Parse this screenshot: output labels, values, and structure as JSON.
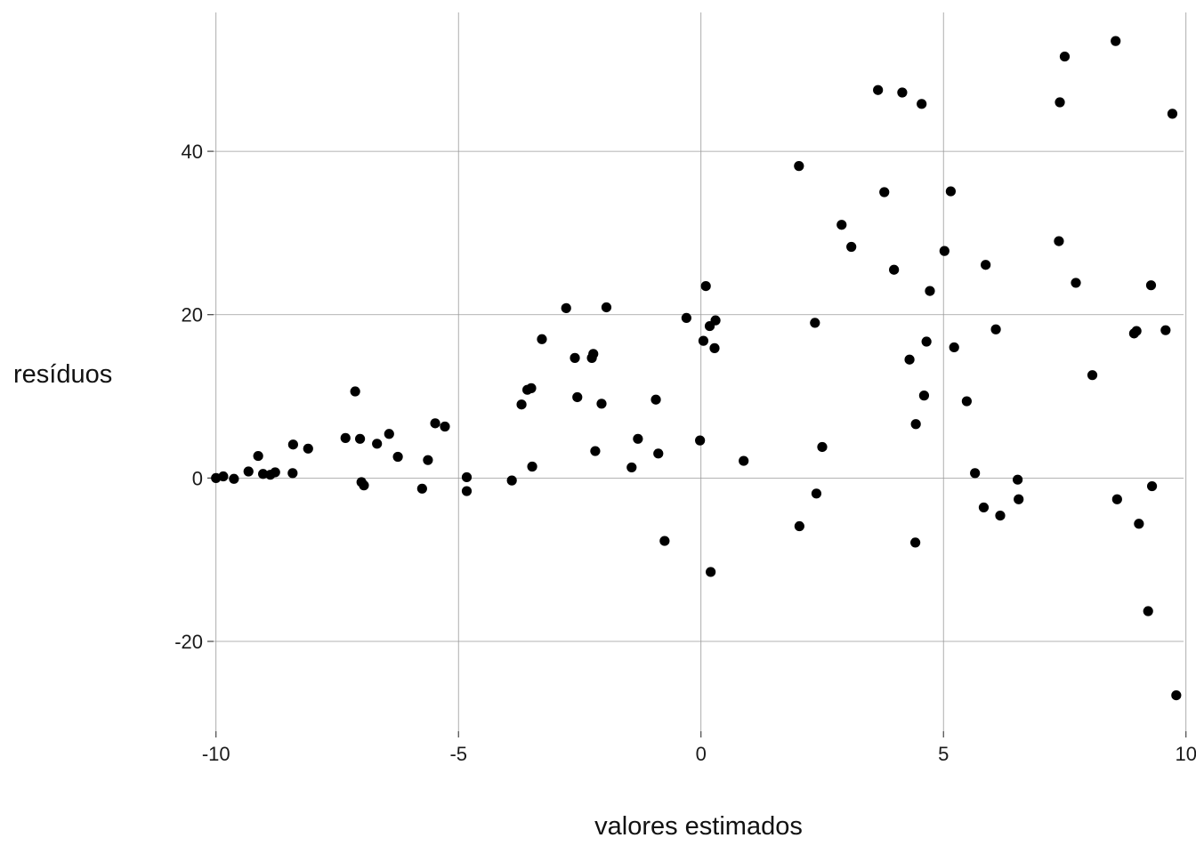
{
  "chart_data": {
    "type": "scatter",
    "title": "",
    "xlabel": "valores estimados",
    "ylabel": "resíduos",
    "xlim": [
      -10.05,
      9.95
    ],
    "ylim": [
      -31,
      57
    ],
    "x_ticks": [
      -10,
      -5,
      0,
      5,
      10
    ],
    "y_ticks": [
      -20,
      0,
      20,
      40
    ],
    "x_tick_labels": [
      "-10",
      "-5",
      "0",
      "5",
      "10"
    ],
    "y_tick_labels": [
      "-20",
      "0",
      "20",
      "40"
    ],
    "grid": true,
    "legend": "none",
    "point_color": "#000000",
    "series": [
      {
        "points": [
          {
            "x": -10.0,
            "y": 0.0
          },
          {
            "x": -9.85,
            "y": 0.2
          },
          {
            "x": -9.63,
            "y": -0.1
          },
          {
            "x": -9.33,
            "y": 0.8
          },
          {
            "x": -9.13,
            "y": 2.7
          },
          {
            "x": -9.03,
            "y": 0.5
          },
          {
            "x": -8.88,
            "y": 0.4
          },
          {
            "x": -8.78,
            "y": 0.7
          },
          {
            "x": -8.42,
            "y": 0.6
          },
          {
            "x": -8.41,
            "y": 4.1
          },
          {
            "x": -8.1,
            "y": 3.6
          },
          {
            "x": -7.33,
            "y": 4.9
          },
          {
            "x": -7.13,
            "y": 10.6
          },
          {
            "x": -7.03,
            "y": 4.8
          },
          {
            "x": -7.0,
            "y": -0.5
          },
          {
            "x": -6.95,
            "y": -0.9
          },
          {
            "x": -6.68,
            "y": 4.2
          },
          {
            "x": -6.43,
            "y": 5.4
          },
          {
            "x": -6.25,
            "y": 2.6
          },
          {
            "x": -5.75,
            "y": -1.3
          },
          {
            "x": -5.63,
            "y": 2.2
          },
          {
            "x": -5.48,
            "y": 6.7
          },
          {
            "x": -5.28,
            "y": 6.3
          },
          {
            "x": -4.83,
            "y": 0.1
          },
          {
            "x": -4.83,
            "y": -1.6
          },
          {
            "x": -3.9,
            "y": -0.3
          },
          {
            "x": -3.7,
            "y": 9.0
          },
          {
            "x": -3.58,
            "y": 10.8
          },
          {
            "x": -3.5,
            "y": 11.0
          },
          {
            "x": -3.48,
            "y": 1.4
          },
          {
            "x": -3.28,
            "y": 17.0
          },
          {
            "x": -2.78,
            "y": 20.8
          },
          {
            "x": -2.6,
            "y": 14.7
          },
          {
            "x": -2.55,
            "y": 9.9
          },
          {
            "x": -2.25,
            "y": 14.7
          },
          {
            "x": -2.22,
            "y": 15.2
          },
          {
            "x": -2.18,
            "y": 3.3
          },
          {
            "x": -2.05,
            "y": 9.1
          },
          {
            "x": -1.95,
            "y": 20.9
          },
          {
            "x": -1.43,
            "y": 1.3
          },
          {
            "x": -1.3,
            "y": 4.8
          },
          {
            "x": -0.93,
            "y": 9.6
          },
          {
            "x": -0.88,
            "y": 3.0
          },
          {
            "x": -0.75,
            "y": -7.7
          },
          {
            "x": -0.3,
            "y": 19.6
          },
          {
            "x": -0.02,
            "y": 4.6
          },
          {
            "x": 0.05,
            "y": 16.8
          },
          {
            "x": 0.1,
            "y": 23.5
          },
          {
            "x": 0.18,
            "y": 18.6
          },
          {
            "x": 0.2,
            "y": -11.5
          },
          {
            "x": 0.28,
            "y": 15.9
          },
          {
            "x": 0.3,
            "y": 19.3
          },
          {
            "x": 0.88,
            "y": 2.1
          },
          {
            "x": 2.02,
            "y": 38.2
          },
          {
            "x": 2.03,
            "y": -5.9
          },
          {
            "x": 2.35,
            "y": 19.0
          },
          {
            "x": 2.38,
            "y": -1.9
          },
          {
            "x": 2.5,
            "y": 3.8
          },
          {
            "x": 2.9,
            "y": 31.0
          },
          {
            "x": 3.1,
            "y": 28.3
          },
          {
            "x": 3.65,
            "y": 47.5
          },
          {
            "x": 3.78,
            "y": 35.0
          },
          {
            "x": 3.98,
            "y": 25.5
          },
          {
            "x": 4.15,
            "y": 47.2
          },
          {
            "x": 4.3,
            "y": 14.5
          },
          {
            "x": 4.42,
            "y": -7.9
          },
          {
            "x": 4.43,
            "y": 6.6
          },
          {
            "x": 4.55,
            "y": 45.8
          },
          {
            "x": 4.6,
            "y": 10.1
          },
          {
            "x": 4.65,
            "y": 16.7
          },
          {
            "x": 4.72,
            "y": 22.9
          },
          {
            "x": 5.02,
            "y": 27.8
          },
          {
            "x": 5.15,
            "y": 35.1
          },
          {
            "x": 5.22,
            "y": 16.0
          },
          {
            "x": 5.48,
            "y": 9.4
          },
          {
            "x": 5.65,
            "y": 0.6
          },
          {
            "x": 5.83,
            "y": -3.6
          },
          {
            "x": 5.87,
            "y": 26.1
          },
          {
            "x": 6.08,
            "y": 18.2
          },
          {
            "x": 6.17,
            "y": -4.6
          },
          {
            "x": 6.53,
            "y": -0.2
          },
          {
            "x": 6.55,
            "y": -2.6
          },
          {
            "x": 7.38,
            "y": 29.0
          },
          {
            "x": 7.4,
            "y": 46.0
          },
          {
            "x": 7.5,
            "y": 51.6
          },
          {
            "x": 7.73,
            "y": 23.9
          },
          {
            "x": 8.07,
            "y": 12.6
          },
          {
            "x": 8.55,
            "y": 53.5
          },
          {
            "x": 8.58,
            "y": -2.6
          },
          {
            "x": 8.93,
            "y": 17.7
          },
          {
            "x": 8.98,
            "y": 18.0
          },
          {
            "x": 9.03,
            "y": -5.6
          },
          {
            "x": 9.22,
            "y": -16.3
          },
          {
            "x": 9.28,
            "y": 23.6
          },
          {
            "x": 9.3,
            "y": -1.0
          },
          {
            "x": 9.58,
            "y": 18.1
          },
          {
            "x": 9.72,
            "y": 44.6
          },
          {
            "x": 9.8,
            "y": -26.6
          }
        ]
      }
    ]
  }
}
